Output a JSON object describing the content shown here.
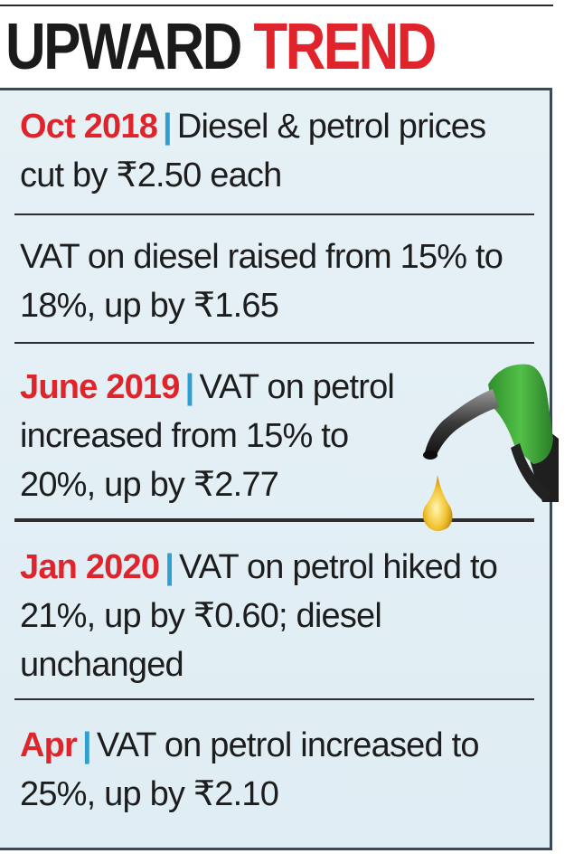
{
  "header": {
    "word1": "UPWARD",
    "word2": "TREND"
  },
  "items": [
    {
      "label": "Oct 2018",
      "separator": "|",
      "text": "Diesel & petrol prices cut by ₹2.50 each"
    },
    {
      "label": "",
      "separator": "",
      "text": "VAT on diesel raised from 15% to 18%, up by ₹1.65"
    },
    {
      "label": "June 2019",
      "separator": "|",
      "text": "VAT on petrol increased from 15% to 20%, up by ₹2.77"
    },
    {
      "label": "Jan 2020",
      "separator": "|",
      "text": "VAT on petrol hiked to 21%, up by ₹0.60; diesel unchanged"
    },
    {
      "label": "Apr",
      "separator": "|",
      "text": "VAT on petrol increased to 25%, up by ₹2.10"
    }
  ],
  "colors": {
    "accent_red": "#e0242b",
    "separator_blue": "#2e9fd0",
    "panel_bg": "#e3eff5",
    "nozzle_green": "#3aa935"
  },
  "icons": [
    "fuel-nozzle-icon",
    "fuel-drop-icon"
  ]
}
